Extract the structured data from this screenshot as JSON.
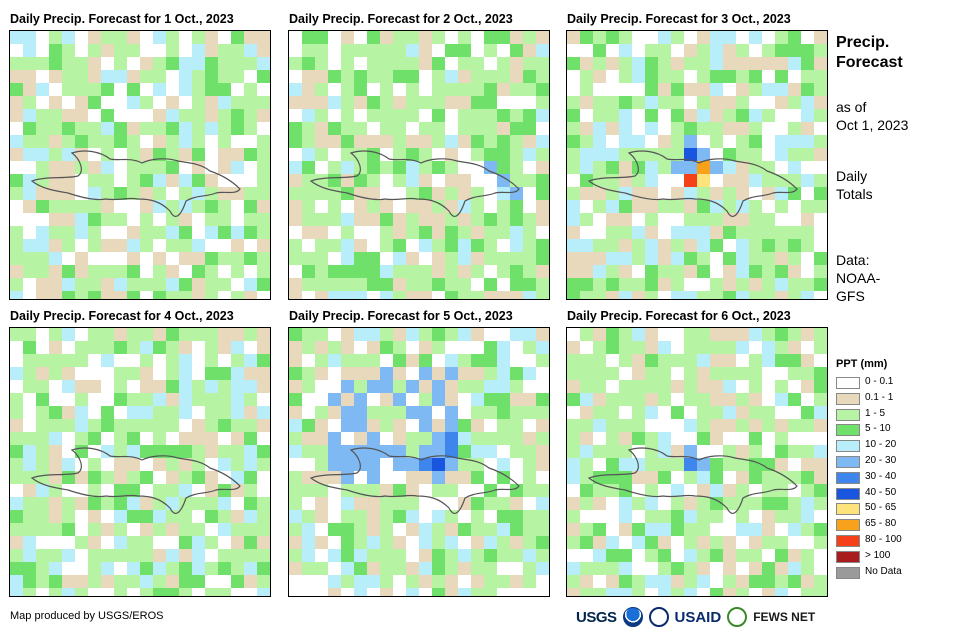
{
  "panels": [
    {
      "title": "Daily Precip. Forecast for 1 Oct., 2023"
    },
    {
      "title": "Daily Precip. Forecast for 2 Oct., 2023"
    },
    {
      "title": "Daily Precip. Forecast for 3 Oct., 2023"
    },
    {
      "title": "Daily Precip. Forecast for 4 Oct., 2023"
    },
    {
      "title": "Daily Precip. Forecast for 5 Oct., 2023"
    },
    {
      "title": "Daily Precip. Forecast for 6 Oct., 2023"
    }
  ],
  "side": {
    "title_line1": "Precip.",
    "title_line2": "Forecast",
    "asof_line1": "as of",
    "asof_line2": "Oct 1, 2023",
    "totals_line1": "Daily",
    "totals_line2": "Totals",
    "data_line1": "Data:",
    "data_line2": "NOAA-",
    "data_line3": "GFS"
  },
  "legend": {
    "title": "PPT (mm)",
    "items": [
      {
        "label": "0 - 0.1",
        "color": "#ffffff"
      },
      {
        "label": "0.1 - 1",
        "color": "#e8d9bd"
      },
      {
        "label": "1 - 5",
        "color": "#b6f3a2"
      },
      {
        "label": "5 - 10",
        "color": "#6fe06a"
      },
      {
        "label": "10 - 20",
        "color": "#b8eefa"
      },
      {
        "label": "20 - 30",
        "color": "#7fb9f3"
      },
      {
        "label": "30 - 40",
        "color": "#3f86ec"
      },
      {
        "label": "40 - 50",
        "color": "#1a55e0"
      },
      {
        "label": "50 - 65",
        "color": "#fde37c"
      },
      {
        "label": "65 - 80",
        "color": "#f8a21b"
      },
      {
        "label": "80 - 100",
        "color": "#f5411a"
      },
      {
        "label": "> 100",
        "color": "#a81e1e"
      },
      {
        "label": "No Data",
        "color": "#9a9a9a"
      }
    ]
  },
  "credit": "Map produced by USGS/EROS",
  "logos": {
    "usgs": "USGS",
    "usaid": "USAID",
    "fews": "FEWS NET"
  }
}
